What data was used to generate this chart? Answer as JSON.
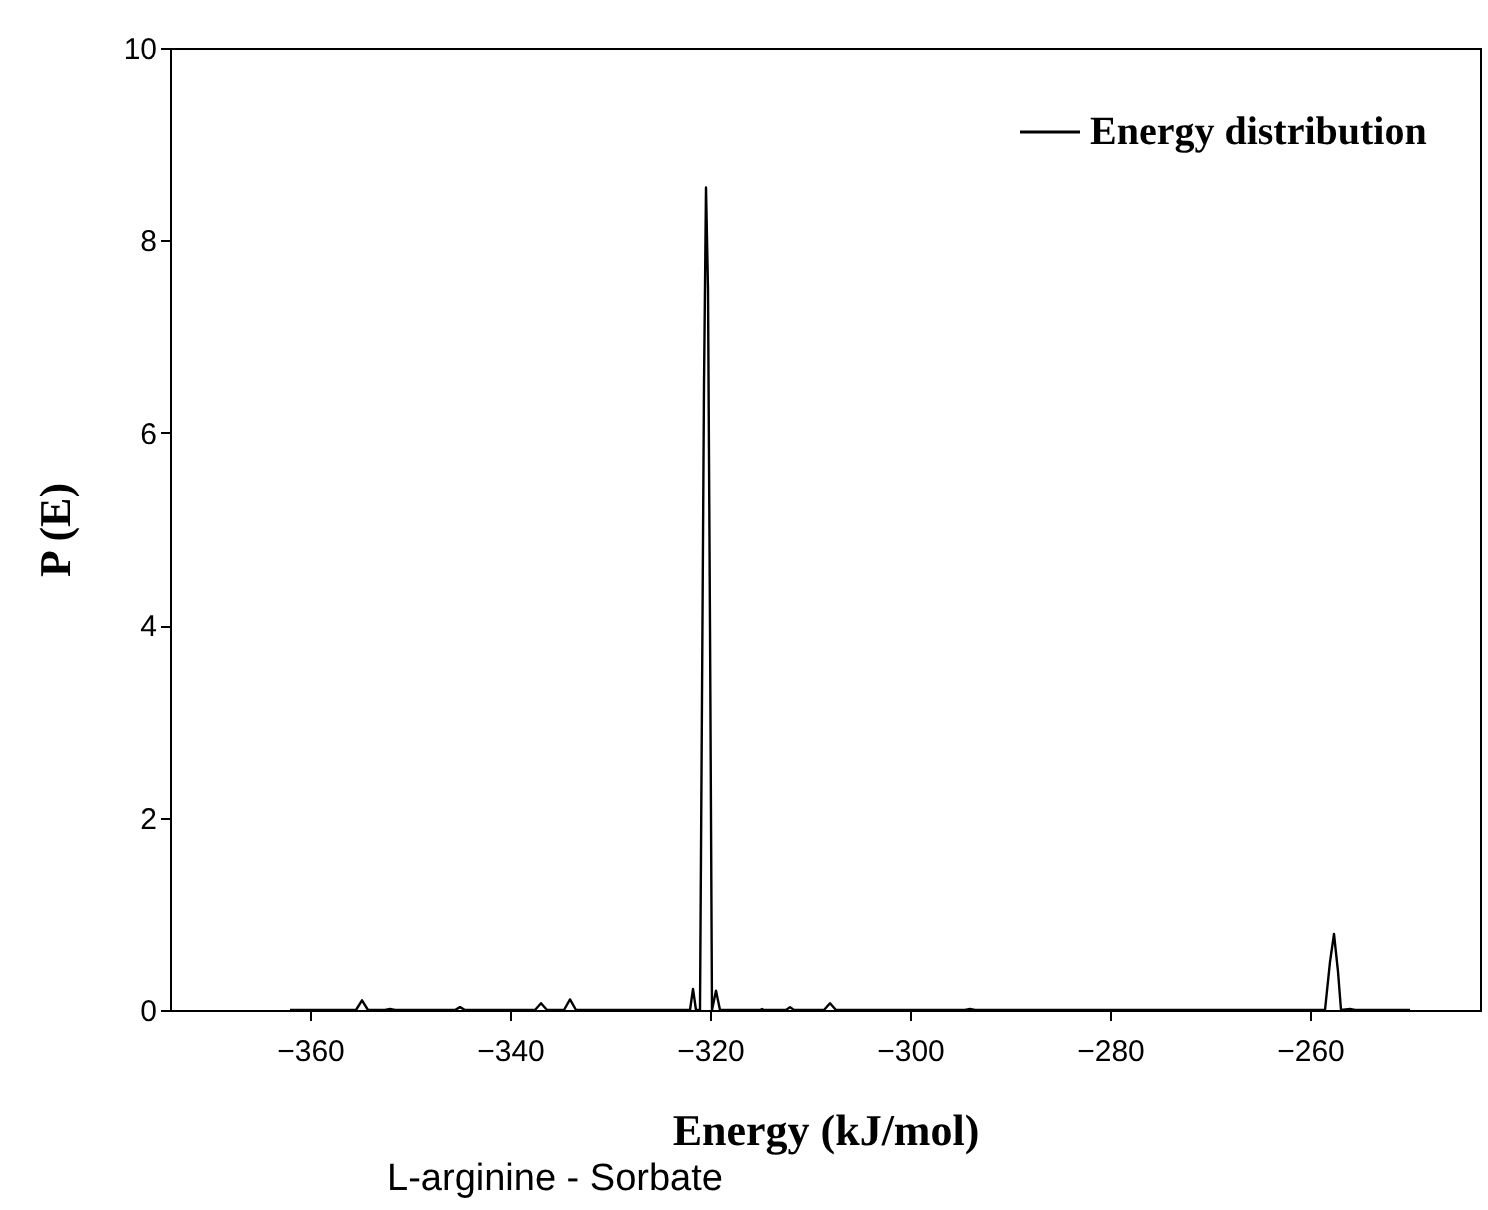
{
  "chart_data": {
    "type": "line",
    "xlabel": "Energy (kJ/mol)",
    "ylabel": "P (E)",
    "annotations": [
      "L-arginine - Sorbate"
    ],
    "x": [
      -362,
      -356,
      -355.4,
      -354.8,
      -354.2,
      -352.5,
      -352,
      -351.5,
      -345.5,
      -345,
      -344.5,
      -337.5,
      -336.9,
      -336.3,
      -334.6,
      -334,
      -333.4,
      -322,
      -321.7,
      -321.4,
      -321,
      -320.6,
      -320.4,
      -320.2,
      -320,
      -319.8,
      -319.4,
      -319,
      -315,
      -314.8,
      -314.6,
      -312.4,
      -312,
      -311.6,
      -308.6,
      -308,
      -307.4,
      -294.5,
      -294,
      -293.5,
      -258.5,
      -258,
      -257.6,
      -257.2,
      -256.9,
      -256,
      -255.5,
      -250
    ],
    "series": [
      {
        "name": "Energy distribution",
        "color": "#000000",
        "values": [
          0,
          0,
          0,
          0.1,
          0,
          0,
          0.01,
          0,
          0,
          0.03,
          0,
          0,
          0.07,
          0,
          0,
          0.11,
          0,
          0,
          0.22,
          0,
          0,
          6.5,
          8.55,
          7.5,
          4,
          0,
          0.2,
          0,
          0,
          0.01,
          0,
          0,
          0.03,
          0,
          0,
          0.07,
          0,
          0,
          0.01,
          0,
          0,
          0.5,
          0.79,
          0.4,
          0,
          0.01,
          0,
          0
        ]
      }
    ],
    "xlim": [
      -374,
      -243
    ],
    "ylim": [
      0,
      10
    ],
    "xticks": [
      -360,
      -340,
      -320,
      -300,
      -280,
      -260
    ],
    "yticks": [
      0,
      2,
      4,
      6,
      8,
      10
    ],
    "grid": false,
    "legend": "top right",
    "line_style": "solid"
  }
}
